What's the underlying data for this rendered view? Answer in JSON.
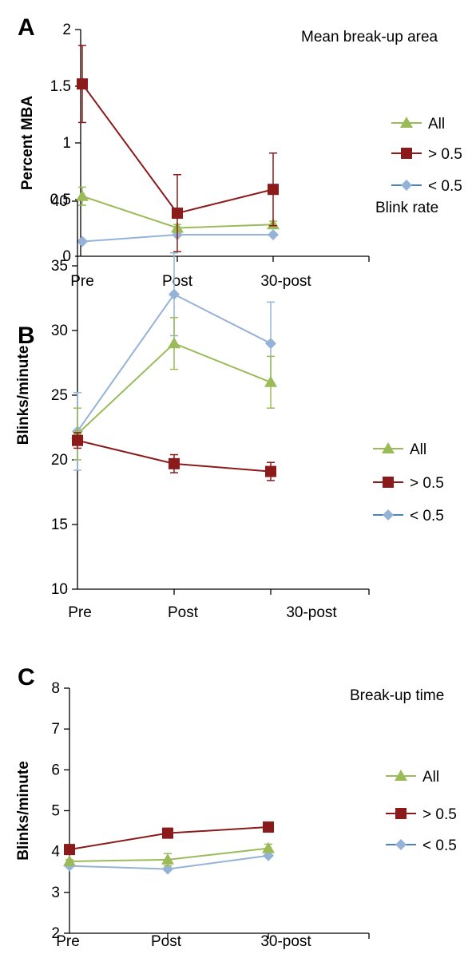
{
  "colors": {
    "all": "#9bbb59",
    "gt": "#8b1a1a",
    "lt": "#95b3d7",
    "lt_legend": "#4f81bd",
    "axis": "#000000"
  },
  "chart_data": [
    {
      "panel": "A",
      "type": "line",
      "title": "Mean break-up area",
      "ylabel": "Percent MBA",
      "xlabel": "",
      "categories": [
        "Pre",
        "Post",
        "30-post"
      ],
      "ylim": [
        0,
        2
      ],
      "yticks": [
        0,
        0.5,
        1,
        1.5,
        2
      ],
      "ytick_labels": [
        "0",
        "0.5",
        "1",
        "1.5",
        "2"
      ],
      "series": [
        {
          "name": "All",
          "marker": "triangle",
          "values": [
            0.53,
            0.25,
            0.28
          ],
          "errors": [
            0.08,
            0.03,
            0.03
          ]
        },
        {
          "name": "> 0.5",
          "marker": "square",
          "values": [
            1.52,
            0.38,
            0.59
          ],
          "errors": [
            0.34,
            0.34,
            0.32
          ]
        },
        {
          "name": "< 0.5",
          "marker": "diamond",
          "values": [
            0.13,
            0.19,
            0.19
          ],
          "errors": [
            0.0,
            0.0,
            0.0
          ]
        }
      ],
      "legend": "right"
    },
    {
      "panel": "B",
      "type": "line",
      "title": "Blink rate",
      "ylabel": "Blinks/minute",
      "xlabel": "",
      "categories": [
        "Pre",
        "Post",
        "30-post"
      ],
      "ylim": [
        10,
        40
      ],
      "yticks": [
        10,
        15,
        20,
        25,
        30,
        35,
        40
      ],
      "ytick_labels": [
        "10",
        "15",
        "20",
        "25",
        "30",
        "35",
        "40"
      ],
      "series": [
        {
          "name": "All",
          "marker": "triangle",
          "values": [
            22.0,
            29.0,
            26.0
          ],
          "errors": [
            2.0,
            2.0,
            2.0
          ]
        },
        {
          "name": "> 0.5",
          "marker": "square",
          "values": [
            21.5,
            19.7,
            19.1
          ],
          "errors": [
            0.6,
            0.7,
            0.7
          ]
        },
        {
          "name": "< 0.5",
          "marker": "diamond",
          "values": [
            22.2,
            32.8,
            29.0
          ],
          "errors": [
            3.0,
            3.2,
            3.2
          ]
        }
      ],
      "legend": "right"
    },
    {
      "panel": "C",
      "type": "line",
      "title": "Break-up time",
      "ylabel": "Blinks/minute",
      "xlabel": "",
      "categories": [
        "Pre",
        "Post",
        "30-post"
      ],
      "ylim": [
        2,
        8
      ],
      "yticks": [
        2,
        3,
        4,
        5,
        6,
        7,
        8
      ],
      "ytick_labels": [
        "2",
        "3",
        "4",
        "5",
        "6",
        "7",
        "8"
      ],
      "series": [
        {
          "name": "All",
          "marker": "triangle",
          "values": [
            3.76,
            3.8,
            4.08
          ],
          "errors": [
            0.04,
            0.15,
            0.1
          ]
        },
        {
          "name": "> 0.5",
          "marker": "square",
          "values": [
            4.05,
            4.45,
            4.6
          ],
          "errors": [
            0.1,
            0.12,
            0.1
          ]
        },
        {
          "name": "< 0.5",
          "marker": "diamond",
          "values": [
            3.65,
            3.57,
            3.9
          ],
          "errors": [
            0.0,
            0.0,
            0.0
          ]
        }
      ],
      "legend": "right"
    }
  ]
}
